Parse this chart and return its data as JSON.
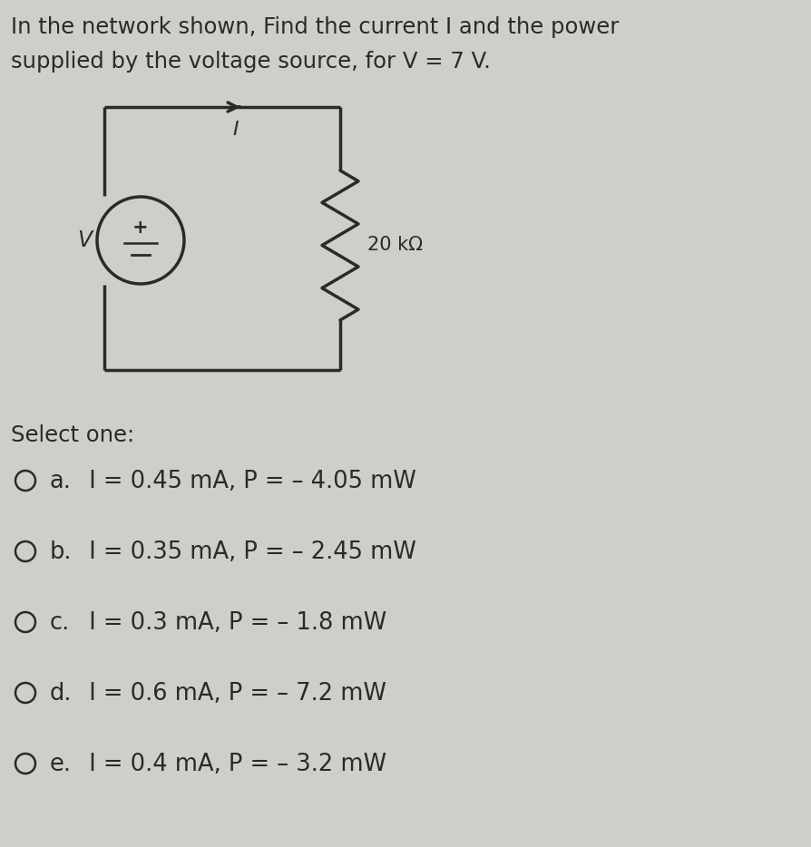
{
  "title_line1": "In the network shown, Find the current I and the power",
  "title_line2": "supplied by the voltage source, for V = 7 V.",
  "select_one": "Select one:",
  "options": [
    [
      "a.",
      "  I = 0.45 mA, P = – 4.05 mW"
    ],
    [
      "b.",
      "  I = 0.35 mA, P = – 2.45 mW"
    ],
    [
      "c.",
      "  I = 0.3 mA, P = – 1.8 mW"
    ],
    [
      "d.",
      "  I = 0.6 mA, P = – 7.2 mW"
    ],
    [
      "e.",
      "  I = 0.4 mA, P = – 3.2 mW"
    ]
  ],
  "resistor_label": "20 kΩ",
  "current_label": "I",
  "voltage_label": "V",
  "bg_color": "#d0cecb",
  "text_color": "#2a2a2a",
  "circuit_color": "#2a2a2a",
  "circuit_bg": "#e8e6e3",
  "title_fontsize": 17.5,
  "option_fontsize": 18.5,
  "select_fontsize": 17.5
}
